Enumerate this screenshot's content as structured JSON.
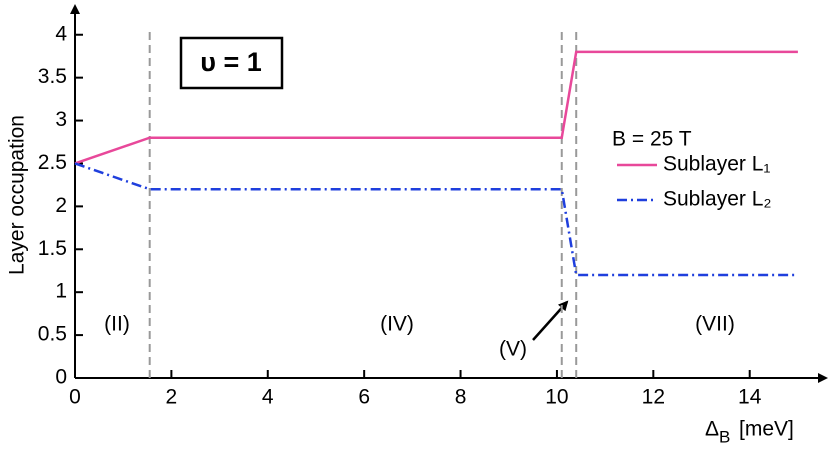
{
  "chart_data": {
    "type": "line",
    "y_label": "Layer occupation",
    "x_label": {
      "symbol": "Δ",
      "subscript": "B",
      "unit": "[meV]"
    },
    "filling_label": "υ = 1",
    "legend_title": "B = 25 T",
    "regions": [
      {
        "label": "(II)"
      },
      {
        "label": "(IV)"
      },
      {
        "label": "(V)"
      },
      {
        "label": "(VII)"
      }
    ],
    "boundaries": [
      1.55,
      10.1,
      10.4
    ],
    "x": [
      0,
      1.55,
      10.1,
      10.4,
      15
    ],
    "series": [
      {
        "name": "Sublayer L₁",
        "color": "#e8489a",
        "dash": "solid",
        "values": [
          2.5,
          2.8,
          2.8,
          3.8,
          3.8
        ]
      },
      {
        "name": "Sublayer L₂",
        "color": "#1f3fdd",
        "dash": "dashdot",
        "values": [
          2.5,
          2.2,
          2.2,
          1.2,
          1.2
        ]
      }
    ],
    "xlim": [
      0,
      15.5
    ],
    "ylim": [
      0,
      4.3
    ],
    "xticks": [
      0,
      2,
      4,
      6,
      8,
      10,
      12,
      14
    ],
    "yticks": [
      0,
      0.5,
      1,
      1.5,
      2,
      2.5,
      3,
      3.5,
      4
    ]
  }
}
